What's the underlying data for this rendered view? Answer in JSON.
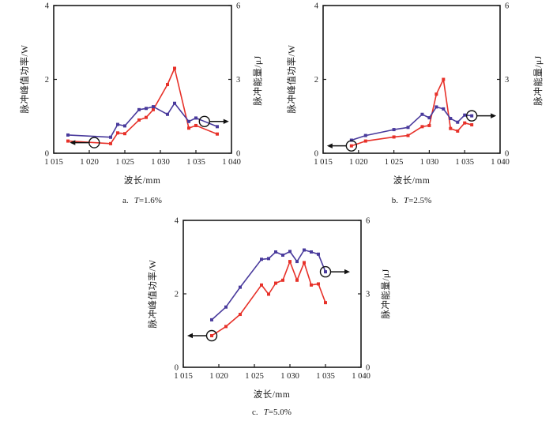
{
  "figure": {
    "background": "#ffffff",
    "axis_color": "#1a1a1a"
  },
  "chart_data": [
    {
      "type": "line",
      "caption": {
        "prefix": "a.",
        "symbol": "T",
        "value": "=1.6%"
      },
      "xlabel": "波长/mm",
      "ylabel_left": "脉冲峰值功率/W",
      "ylabel_right": "脉冲能量/μJ",
      "x_range": [
        1015,
        1040
      ],
      "x_tick_values": [
        1015,
        1020,
        1025,
        1030,
        1035,
        1040
      ],
      "x_tick_labels": [
        "1 015",
        "1 020",
        "1 025",
        "1 030",
        "1 035",
        "1 040"
      ],
      "y_left_range": [
        0,
        4
      ],
      "y_left_ticks": [
        0,
        2,
        4
      ],
      "y_right_range": [
        0,
        6
      ],
      "y_right_ticks": [
        0,
        3,
        6
      ],
      "grid": false,
      "legend": "none",
      "x": [
        1017,
        1023,
        1024,
        1025,
        1027,
        1028,
        1029,
        1031,
        1032,
        1034,
        1035,
        1038
      ],
      "series": [
        {
          "name": "pulse-peak-power",
          "axis": "left",
          "color": "#e73129",
          "values": [
            0.33,
            0.26,
            0.55,
            0.53,
            0.9,
            0.97,
            1.18,
            1.86,
            2.3,
            0.68,
            0.75,
            0.52
          ]
        },
        {
          "name": "pulse-energy",
          "axis": "right",
          "color": "#493a9c",
          "values": [
            0.74,
            0.65,
            1.17,
            1.11,
            1.77,
            1.82,
            1.89,
            1.58,
            2.03,
            1.29,
            1.43,
            1.08
          ]
        }
      ],
      "annotations": [
        {
          "series": 0,
          "x": 1020.7,
          "arrow": "left"
        },
        {
          "series": 1,
          "x": 1036.2,
          "arrow": "right"
        }
      ]
    },
    {
      "type": "line",
      "caption": {
        "prefix": "b.",
        "symbol": "T",
        "value": "=2.5%"
      },
      "xlabel": "波长/mm",
      "ylabel_left": "脉冲峰值功率/W",
      "ylabel_right": "脉冲能量/μJ",
      "x_range": [
        1015,
        1040
      ],
      "x_tick_values": [
        1015,
        1020,
        1025,
        1030,
        1035,
        1040
      ],
      "x_tick_labels": [
        "1 015",
        "1 020",
        "1 025",
        "1 030",
        "1 035",
        "1 040"
      ],
      "y_left_range": [
        0,
        4
      ],
      "y_left_ticks": [
        0,
        2,
        4
      ],
      "y_right_range": [
        0,
        6
      ],
      "y_right_ticks": [
        0,
        3,
        6
      ],
      "grid": false,
      "legend": "none",
      "x": [
        1019,
        1021,
        1025,
        1027,
        1029,
        1030,
        1031,
        1032,
        1033,
        1034,
        1035,
        1036
      ],
      "series": [
        {
          "name": "pulse-peak-power",
          "axis": "left",
          "color": "#e73129",
          "values": [
            0.2,
            0.33,
            0.44,
            0.48,
            0.72,
            0.75,
            1.6,
            2.0,
            0.67,
            0.6,
            0.82,
            0.77
          ]
        },
        {
          "name": "pulse-energy",
          "axis": "right",
          "color": "#493a9c",
          "values": [
            0.53,
            0.72,
            0.96,
            1.05,
            1.58,
            1.44,
            1.88,
            1.8,
            1.41,
            1.26,
            1.55,
            1.52
          ]
        }
      ],
      "annotations": [
        {
          "series": 0,
          "x": 1019,
          "arrow": "left"
        },
        {
          "series": 1,
          "x": 1036,
          "arrow": "right"
        }
      ]
    },
    {
      "type": "line",
      "caption": {
        "prefix": "c.",
        "symbol": "T",
        "value": "=5.0%"
      },
      "xlabel": "波长/mm",
      "ylabel_left": "脉冲峰值功率/W",
      "ylabel_right": "脉冲能量/μJ",
      "x_range": [
        1015,
        1040
      ],
      "x_tick_values": [
        1015,
        1020,
        1025,
        1030,
        1035,
        1040
      ],
      "x_tick_labels": [
        "1 015",
        "1 020",
        "1 025",
        "1 030",
        "1 035",
        "1 040"
      ],
      "y_left_range": [
        0,
        4
      ],
      "y_left_ticks": [
        0,
        2,
        4
      ],
      "y_right_range": [
        0,
        6
      ],
      "y_right_ticks": [
        0,
        3,
        6
      ],
      "grid": false,
      "legend": "none",
      "x": [
        1019,
        1021,
        1023,
        1026,
        1027,
        1028,
        1029,
        1030,
        1031,
        1032,
        1033,
        1034,
        1035
      ],
      "series": [
        {
          "name": "pulse-peak-power",
          "axis": "left",
          "color": "#e73129",
          "values": [
            0.86,
            1.11,
            1.44,
            2.24,
            1.99,
            2.29,
            2.37,
            2.88,
            2.37,
            2.85,
            2.24,
            2.27,
            1.76
          ]
        },
        {
          "name": "pulse-energy",
          "axis": "right",
          "color": "#493a9c",
          "values": [
            1.94,
            2.46,
            3.27,
            4.41,
            4.44,
            4.71,
            4.58,
            4.73,
            4.32,
            4.79,
            4.71,
            4.62,
            3.9
          ]
        }
      ],
      "annotations": [
        {
          "series": 0,
          "x": 1019,
          "arrow": "left"
        },
        {
          "series": 1,
          "x": 1035,
          "arrow": "right"
        }
      ]
    }
  ]
}
